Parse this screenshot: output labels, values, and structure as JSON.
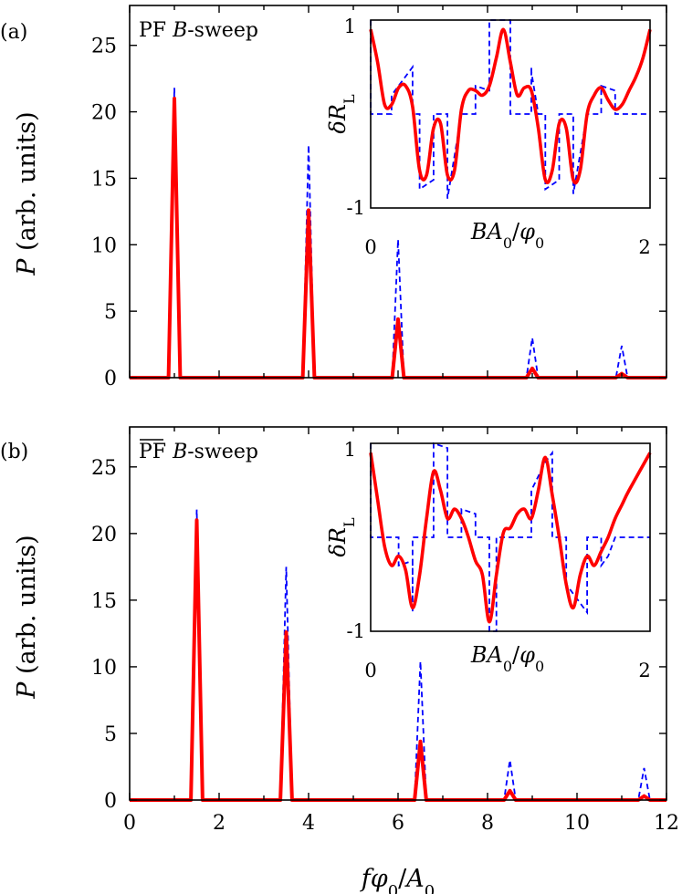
{
  "chart_data": [
    {
      "type": "line",
      "panel_label": "(a)",
      "annotation": {
        "prefix": "PF",
        "var": "B",
        "suffix": "-sweep",
        "overline": false
      },
      "ylabel": {
        "var": "P",
        "rest": " (arb. units)"
      },
      "xlabel": "",
      "xlim": [
        0,
        12
      ],
      "ylim": [
        0,
        28
      ],
      "yticks": [
        0,
        5,
        10,
        15,
        20,
        25
      ],
      "xticks": [],
      "peak_width": 0.13,
      "series": [
        {
          "color": "#ff0000",
          "style": "solid",
          "peaks": [
            {
              "x": 1,
              "y": 21.0
            },
            {
              "x": 4,
              "y": 12.6
            },
            {
              "x": 6,
              "y": 4.4
            },
            {
              "x": 9,
              "y": 0.7
            },
            {
              "x": 11,
              "y": 0.3
            }
          ]
        },
        {
          "color": "#0000ff",
          "style": "dashed",
          "peaks": [
            {
              "x": 1,
              "y": 21.8
            },
            {
              "x": 4,
              "y": 17.5
            },
            {
              "x": 6,
              "y": 10.4
            },
            {
              "x": 9,
              "y": 3.0
            },
            {
              "x": 11,
              "y": 2.4
            }
          ]
        }
      ],
      "inset": {
        "ylabel": {
          "prefix": "δ",
          "var": "R",
          "sub": "L"
        },
        "xlabel": {
          "var": "BA",
          "sub": "0",
          "slash": "/",
          "var2": "φ",
          "sub2": "0"
        },
        "xlim": [
          0,
          2
        ],
        "ylim": [
          -1,
          1
        ],
        "ytick_labels": [
          "1",
          "-1"
        ],
        "xtick_labels": [
          "0",
          "2"
        ],
        "series": [
          {
            "color": "#ff0000",
            "style": "solid",
            "points": [
              [
                0,
                0.9
              ],
              [
                0.05,
                0.55
              ],
              [
                0.1,
                0.1
              ],
              [
                0.15,
                0.1
              ],
              [
                0.2,
                0.28
              ],
              [
                0.25,
                0.3
              ],
              [
                0.3,
                0.08
              ],
              [
                0.35,
                -0.6
              ],
              [
                0.4,
                -0.65
              ],
              [
                0.45,
                -0.15
              ],
              [
                0.5,
                -0.1
              ],
              [
                0.55,
                -0.65
              ],
              [
                0.6,
                -0.6
              ],
              [
                0.65,
                0.05
              ],
              [
                0.7,
                0.25
              ],
              [
                0.75,
                0.25
              ],
              [
                0.8,
                0.2
              ],
              [
                0.85,
                0.3
              ],
              [
                0.9,
                0.6
              ],
              [
                0.95,
                0.9
              ],
              [
                1.0,
                0.55
              ],
              [
                1.05,
                0.2
              ],
              [
                1.1,
                0.28
              ],
              [
                1.15,
                0.25
              ],
              [
                1.2,
                -0.15
              ],
              [
                1.25,
                -0.7
              ],
              [
                1.3,
                -0.6
              ],
              [
                1.35,
                -0.1
              ],
              [
                1.4,
                -0.15
              ],
              [
                1.45,
                -0.7
              ],
              [
                1.5,
                -0.6
              ],
              [
                1.55,
                0.0
              ],
              [
                1.6,
                0.2
              ],
              [
                1.65,
                0.28
              ],
              [
                1.7,
                0.15
              ],
              [
                1.75,
                0.05
              ],
              [
                1.8,
                0.1
              ],
              [
                1.85,
                0.25
              ],
              [
                1.9,
                0.4
              ],
              [
                1.95,
                0.6
              ],
              [
                2.0,
                0.9
              ]
            ]
          },
          {
            "color": "#0000ff",
            "style": "dashed",
            "points": [
              [
                0,
                1
              ],
              [
                0,
                0
              ],
              [
                0.15,
                0
              ],
              [
                0.15,
                0.2
              ],
              [
                0.3,
                0.5
              ],
              [
                0.3,
                0
              ],
              [
                0.35,
                0
              ],
              [
                0.35,
                -0.8
              ],
              [
                0.45,
                -0.7
              ],
              [
                0.45,
                0
              ],
              [
                0.55,
                0
              ],
              [
                0.55,
                -0.9
              ],
              [
                0.65,
                0
              ],
              [
                0.75,
                0
              ],
              [
                0.75,
                0.3
              ],
              [
                0.85,
                0.25
              ],
              [
                0.85,
                1
              ],
              [
                1.0,
                1
              ],
              [
                1.0,
                0
              ],
              [
                1.15,
                0
              ],
              [
                1.15,
                0.5
              ],
              [
                1.15,
                0.45
              ],
              [
                1.2,
                0
              ],
              [
                1.25,
                0
              ],
              [
                1.25,
                -0.8
              ],
              [
                1.35,
                -0.7
              ],
              [
                1.35,
                0
              ],
              [
                1.45,
                0
              ],
              [
                1.45,
                -0.85
              ],
              [
                1.55,
                0
              ],
              [
                1.65,
                0
              ],
              [
                1.65,
                0.3
              ],
              [
                1.75,
                0.25
              ],
              [
                1.75,
                0
              ],
              [
                2.0,
                0
              ]
            ]
          }
        ]
      }
    },
    {
      "type": "line",
      "panel_label": "(b)",
      "annotation": {
        "prefix": "PF",
        "var": "B",
        "suffix": "-sweep",
        "overline": true
      },
      "ylabel": {
        "var": "P",
        "rest": " (arb. units)"
      },
      "xlabel": {
        "var": "fφ",
        "sub": "0",
        "slash": "/",
        "var2": "A",
        "sub2": "0"
      },
      "xlim": [
        0,
        12
      ],
      "ylim": [
        0,
        28
      ],
      "yticks": [
        0,
        5,
        10,
        15,
        20,
        25
      ],
      "xticks": [
        0,
        2,
        4,
        6,
        8,
        10,
        12
      ],
      "peak_width": 0.13,
      "series": [
        {
          "color": "#ff0000",
          "style": "solid",
          "peaks": [
            {
              "x": 1.5,
              "y": 21.0
            },
            {
              "x": 3.5,
              "y": 12.6
            },
            {
              "x": 6.5,
              "y": 4.4
            },
            {
              "x": 8.5,
              "y": 0.7
            },
            {
              "x": 11.5,
              "y": 0.3
            }
          ]
        },
        {
          "color": "#0000ff",
          "style": "dashed",
          "peaks": [
            {
              "x": 1.5,
              "y": 21.8
            },
            {
              "x": 3.5,
              "y": 17.5
            },
            {
              "x": 6.5,
              "y": 10.4
            },
            {
              "x": 8.5,
              "y": 3.0
            },
            {
              "x": 11.5,
              "y": 2.4
            }
          ]
        }
      ],
      "inset": {
        "ylabel": {
          "prefix": "δ",
          "var": "R",
          "sub": "L"
        },
        "xlabel": {
          "var": "BA",
          "sub": "0",
          "slash": "/",
          "var2": "φ",
          "sub2": "0"
        },
        "xlim": [
          0,
          2
        ],
        "ylim": [
          -1,
          1
        ],
        "ytick_labels": [
          "1",
          "-1"
        ],
        "xtick_labels": [
          "0",
          "2"
        ],
        "series": [
          {
            "color": "#ff0000",
            "style": "solid",
            "points": [
              [
                0,
                0.9
              ],
              [
                0.05,
                0.4
              ],
              [
                0.1,
                -0.1
              ],
              [
                0.15,
                -0.3
              ],
              [
                0.2,
                -0.2
              ],
              [
                0.25,
                -0.35
              ],
              [
                0.3,
                -0.75
              ],
              [
                0.35,
                -0.4
              ],
              [
                0.4,
                0.2
              ],
              [
                0.45,
                0.7
              ],
              [
                0.5,
                0.5
              ],
              [
                0.55,
                0.2
              ],
              [
                0.6,
                0.3
              ],
              [
                0.65,
                0.2
              ],
              [
                0.7,
                0.0
              ],
              [
                0.75,
                -0.25
              ],
              [
                0.8,
                -0.4
              ],
              [
                0.85,
                -0.9
              ],
              [
                0.9,
                -0.4
              ],
              [
                0.95,
                0.05
              ],
              [
                1.0,
                0.1
              ],
              [
                1.05,
                0.25
              ],
              [
                1.1,
                0.3
              ],
              [
                1.15,
                0.2
              ],
              [
                1.2,
                0.5
              ],
              [
                1.25,
                0.85
              ],
              [
                1.3,
                0.45
              ],
              [
                1.35,
                0.0
              ],
              [
                1.4,
                -0.5
              ],
              [
                1.45,
                -0.75
              ],
              [
                1.5,
                -0.4
              ],
              [
                1.55,
                -0.2
              ],
              [
                1.6,
                -0.3
              ],
              [
                1.65,
                -0.15
              ],
              [
                1.7,
                0.0
              ],
              [
                1.75,
                0.2
              ],
              [
                1.8,
                0.35
              ],
              [
                1.85,
                0.5
              ],
              [
                2.0,
                0.9
              ]
            ]
          },
          {
            "color": "#0000ff",
            "style": "dashed",
            "points": [
              [
                0,
                1
              ],
              [
                0,
                0
              ],
              [
                0.2,
                0
              ],
              [
                0.2,
                -0.3
              ],
              [
                0.3,
                -0.25
              ],
              [
                0.3,
                -0.8
              ],
              [
                0.3,
                0
              ],
              [
                0.45,
                0
              ],
              [
                0.45,
                1
              ],
              [
                0.55,
                0.95
              ],
              [
                0.55,
                0
              ],
              [
                0.65,
                0
              ],
              [
                0.65,
                0.3
              ],
              [
                0.75,
                0.25
              ],
              [
                0.75,
                0
              ],
              [
                0.85,
                0
              ],
              [
                0.85,
                -1
              ],
              [
                0.9,
                -1
              ],
              [
                0.9,
                0
              ],
              [
                1.15,
                0
              ],
              [
                1.15,
                0.5
              ],
              [
                1.25,
                0.8
              ],
              [
                1.3,
                0.9
              ],
              [
                1.3,
                0
              ],
              [
                1.4,
                0
              ],
              [
                1.4,
                -0.5
              ],
              [
                1.55,
                -0.8
              ],
              [
                1.55,
                0
              ],
              [
                1.65,
                0
              ],
              [
                1.65,
                -0.3
              ],
              [
                1.7,
                -0.2
              ],
              [
                1.75,
                0
              ],
              [
                2.0,
                0
              ]
            ]
          }
        ]
      }
    }
  ]
}
